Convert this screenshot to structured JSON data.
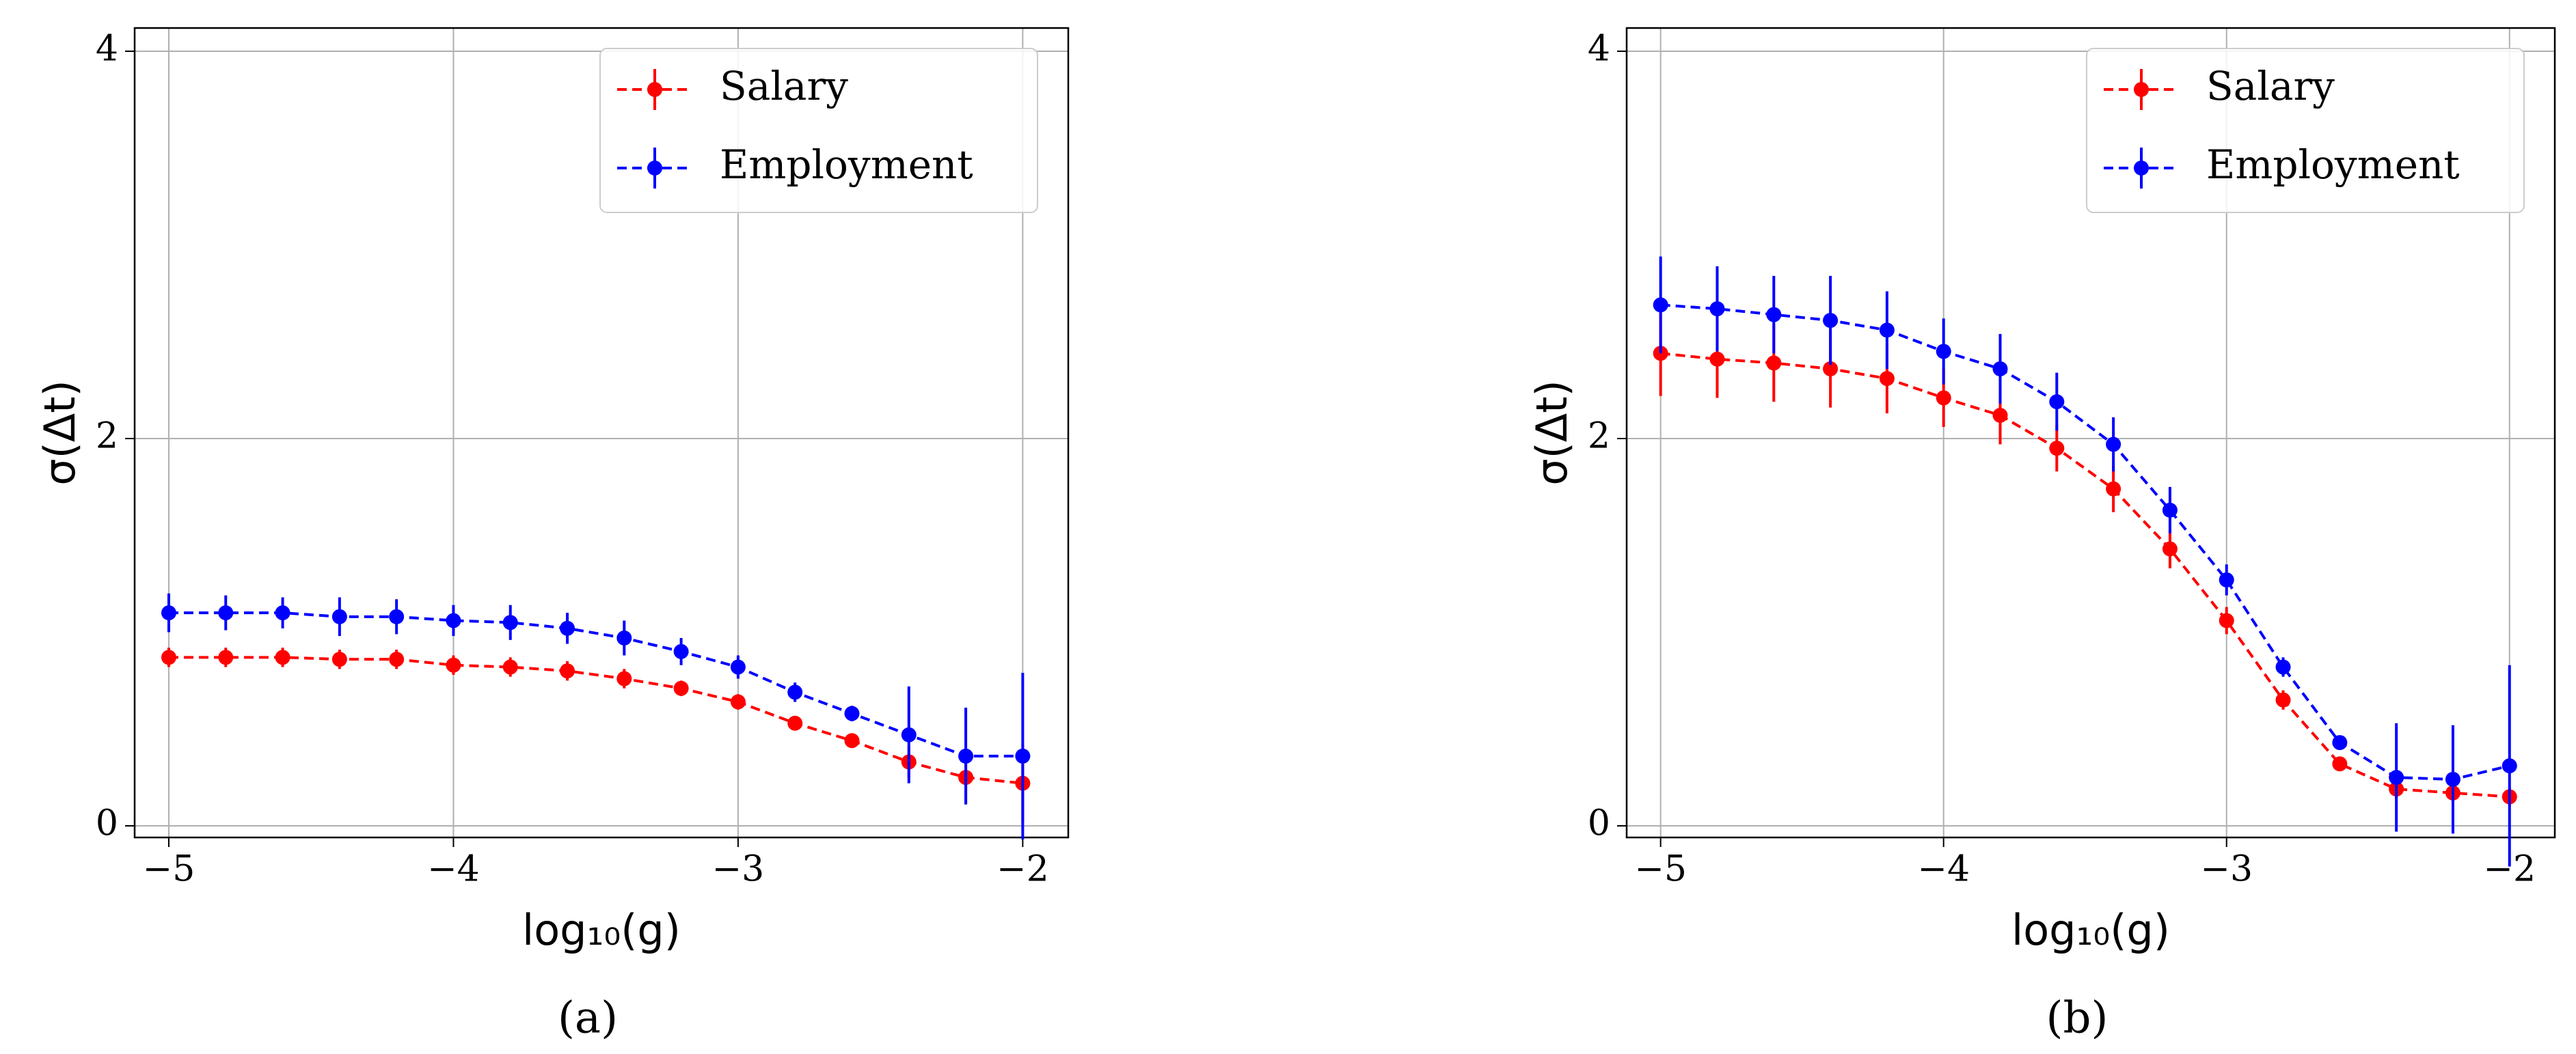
{
  "chart_data": [
    {
      "type": "line",
      "caption": "(a)",
      "x_label": "log₁₀(g)",
      "y_label": "σ(Δt)",
      "x": [
        -5,
        -4.8,
        -4.6,
        -4.4,
        -4.2,
        -4,
        -3.8,
        -3.6,
        -3.4,
        -3.2,
        -3,
        -2.8,
        -2.6,
        -2.4,
        -2.2,
        -2
      ],
      "series": [
        {
          "name": "Salary",
          "color": "#ff0000",
          "values": [
            0.87,
            0.87,
            0.87,
            0.86,
            0.86,
            0.83,
            0.82,
            0.8,
            0.76,
            0.71,
            0.64,
            0.53,
            0.44,
            0.33,
            0.25,
            0.22
          ],
          "errors": [
            0.05,
            0.05,
            0.05,
            0.05,
            0.05,
            0.05,
            0.05,
            0.05,
            0.05,
            0.04,
            0.04,
            0.03,
            0.03,
            0.08,
            0.13,
            0.2
          ]
        },
        {
          "name": "Employment",
          "color": "#0000ff",
          "values": [
            1.1,
            1.1,
            1.1,
            1.08,
            1.08,
            1.06,
            1.05,
            1.02,
            0.97,
            0.9,
            0.82,
            0.69,
            0.58,
            0.47,
            0.36,
            0.36
          ],
          "errors": [
            0.1,
            0.09,
            0.08,
            0.1,
            0.09,
            0.08,
            0.09,
            0.08,
            0.09,
            0.07,
            0.06,
            0.05,
            0.04,
            0.25,
            0.25,
            0.43
          ]
        }
      ],
      "xlim": [
        -5.12,
        -1.84
      ],
      "ylim": [
        -0.06,
        4.12
      ],
      "xticks": [
        {
          "value": -5,
          "label": "−5"
        },
        {
          "value": -4,
          "label": "−4"
        },
        {
          "value": -3,
          "label": "−3"
        },
        {
          "value": -2,
          "label": "−2"
        }
      ],
      "yticks": [
        0,
        2,
        4
      ],
      "grid": true,
      "legend": "upper right"
    },
    {
      "type": "line",
      "caption": "(b)",
      "x_label": "log₁₀(g)",
      "y_label": "σ(Δt)",
      "x": [
        -5,
        -4.8,
        -4.6,
        -4.4,
        -4.2,
        -4,
        -3.8,
        -3.6,
        -3.4,
        -3.2,
        -3,
        -2.8,
        -2.6,
        -2.4,
        -2.2,
        -2
      ],
      "series": [
        {
          "name": "Salary",
          "color": "#ff0000",
          "values": [
            2.44,
            2.41,
            2.39,
            2.36,
            2.31,
            2.21,
            2.12,
            1.95,
            1.74,
            1.43,
            1.06,
            0.65,
            0.32,
            0.19,
            0.17,
            0.15
          ],
          "errors": [
            0.22,
            0.2,
            0.2,
            0.2,
            0.18,
            0.15,
            0.15,
            0.12,
            0.12,
            0.1,
            0.07,
            0.05,
            0.03,
            0.05,
            0.05,
            0.05
          ]
        },
        {
          "name": "Employment",
          "color": "#0000ff",
          "values": [
            2.69,
            2.67,
            2.64,
            2.61,
            2.56,
            2.45,
            2.36,
            2.19,
            1.97,
            1.63,
            1.27,
            0.82,
            0.43,
            0.25,
            0.24,
            0.31
          ],
          "errors": [
            0.25,
            0.22,
            0.2,
            0.23,
            0.2,
            0.17,
            0.18,
            0.15,
            0.14,
            0.12,
            0.08,
            0.05,
            0.03,
            0.28,
            0.28,
            0.52
          ]
        }
      ],
      "xlim": [
        -5.12,
        -1.84
      ],
      "ylim": [
        -0.06,
        4.12
      ],
      "xticks": [
        {
          "value": -5,
          "label": "−5"
        },
        {
          "value": -4,
          "label": "−4"
        },
        {
          "value": -3,
          "label": "−3"
        },
        {
          "value": -2,
          "label": "−2"
        }
      ],
      "yticks": [
        0,
        2,
        4
      ],
      "grid": true,
      "legend": "upper right"
    }
  ]
}
